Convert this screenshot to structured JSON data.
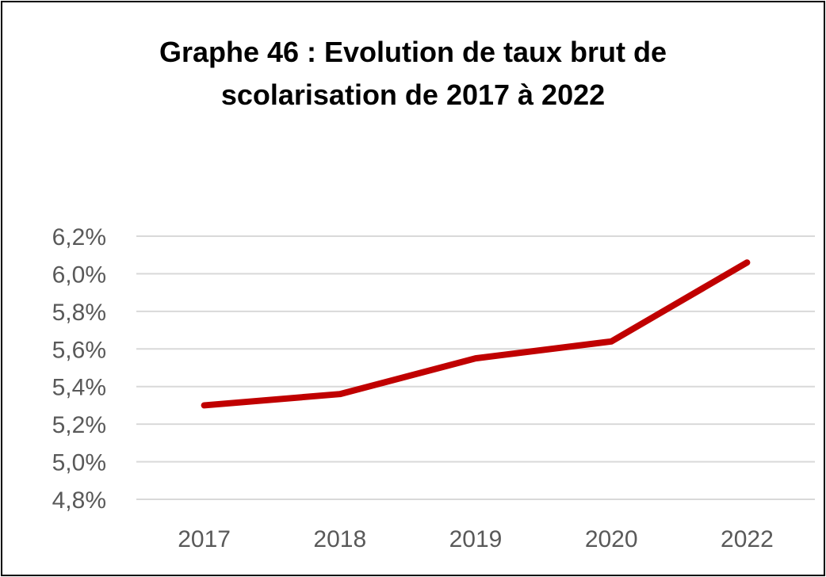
{
  "chart_data": {
    "type": "line",
    "title": "Graphe 46 : Evolution de taux brut de scolarisation de 2017 à 2022",
    "title_lines": [
      "Graphe 46 : Evolution de taux brut de",
      "scolarisation de 2017 à 2022"
    ],
    "categories": [
      "2017",
      "2018",
      "2019",
      "2020",
      "2022"
    ],
    "series": [
      {
        "values": [
          5.3,
          5.36,
          5.55,
          5.64,
          6.06
        ],
        "color": "#c00000"
      }
    ],
    "xlabel": "",
    "ylabel": "",
    "ylim": [
      4.8,
      6.2
    ],
    "yticks": [
      4.8,
      5.0,
      5.2,
      5.4,
      5.6,
      5.8,
      6.0,
      6.2
    ],
    "ytick_labels": [
      "4,8%",
      "5,0%",
      "5,2%",
      "5,4%",
      "5,6%",
      "5,8%",
      "6,0%",
      "6,2%"
    ],
    "grid": true,
    "legend": "none",
    "colors": {
      "line": "#c00000",
      "grid": "#d9d9d9",
      "tick_text": "#595959",
      "border": "#000000"
    }
  }
}
